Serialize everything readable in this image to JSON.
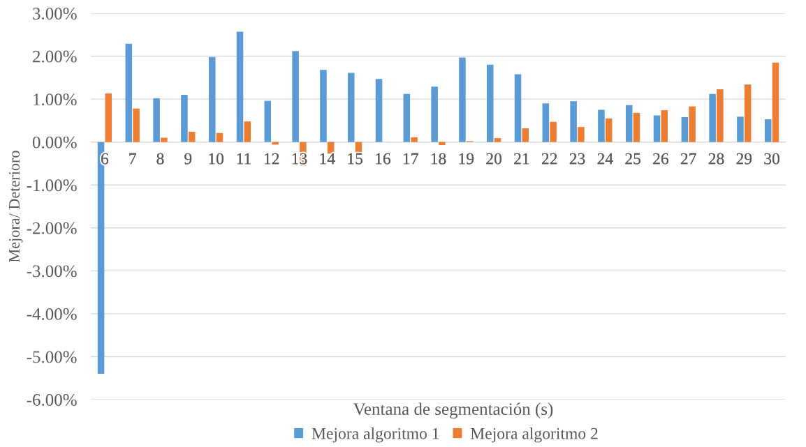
{
  "chart_data": {
    "type": "bar",
    "xlabel": "Ventana de segmentación (s)",
    "ylabel": "Mejora/ Deterioro",
    "categories": [
      "6",
      "7",
      "8",
      "9",
      "10",
      "11",
      "12",
      "13",
      "14",
      "15",
      "16",
      "17",
      "18",
      "19",
      "20",
      "21",
      "22",
      "23",
      "24",
      "25",
      "26",
      "27",
      "28",
      "29",
      "30"
    ],
    "series": [
      {
        "name": "Mejora algoritmo 1",
        "color": "#5b9bd5",
        "values": [
          -5.4,
          2.29,
          1.02,
          1.1,
          1.98,
          2.57,
          0.96,
          2.12,
          1.68,
          1.61,
          1.47,
          1.12,
          1.29,
          1.97,
          1.8,
          1.58,
          0.9,
          0.95,
          0.75,
          0.86,
          0.62,
          0.58,
          1.12,
          0.59,
          0.53
        ]
      },
      {
        "name": "Mejora algoritmo 2",
        "color": "#ed7d31",
        "values": [
          1.13,
          0.78,
          0.1,
          0.24,
          0.21,
          0.48,
          -0.06,
          -0.55,
          -0.27,
          -0.25,
          null,
          0.11,
          -0.07,
          0.02,
          0.09,
          0.32,
          0.47,
          0.35,
          0.55,
          0.68,
          0.74,
          0.83,
          1.23,
          1.34,
          1.85
        ]
      }
    ],
    "ylim": [
      -6,
      3
    ],
    "yticks": [
      {
        "value": 3,
        "label": "3.00%"
      },
      {
        "value": 2,
        "label": "2.00%"
      },
      {
        "value": 1,
        "label": "1.00%"
      },
      {
        "value": 0,
        "label": "0.00%"
      },
      {
        "value": -1,
        "label": "-1.00%"
      },
      {
        "value": -2,
        "label": "-2.00%"
      },
      {
        "value": -3,
        "label": "-3.00%"
      },
      {
        "value": -4,
        "label": "-4.00%"
      },
      {
        "value": -5,
        "label": "-5.00%"
      },
      {
        "value": -6,
        "label": "-6.00%"
      }
    ],
    "grid": "y",
    "legend": "bottom"
  }
}
